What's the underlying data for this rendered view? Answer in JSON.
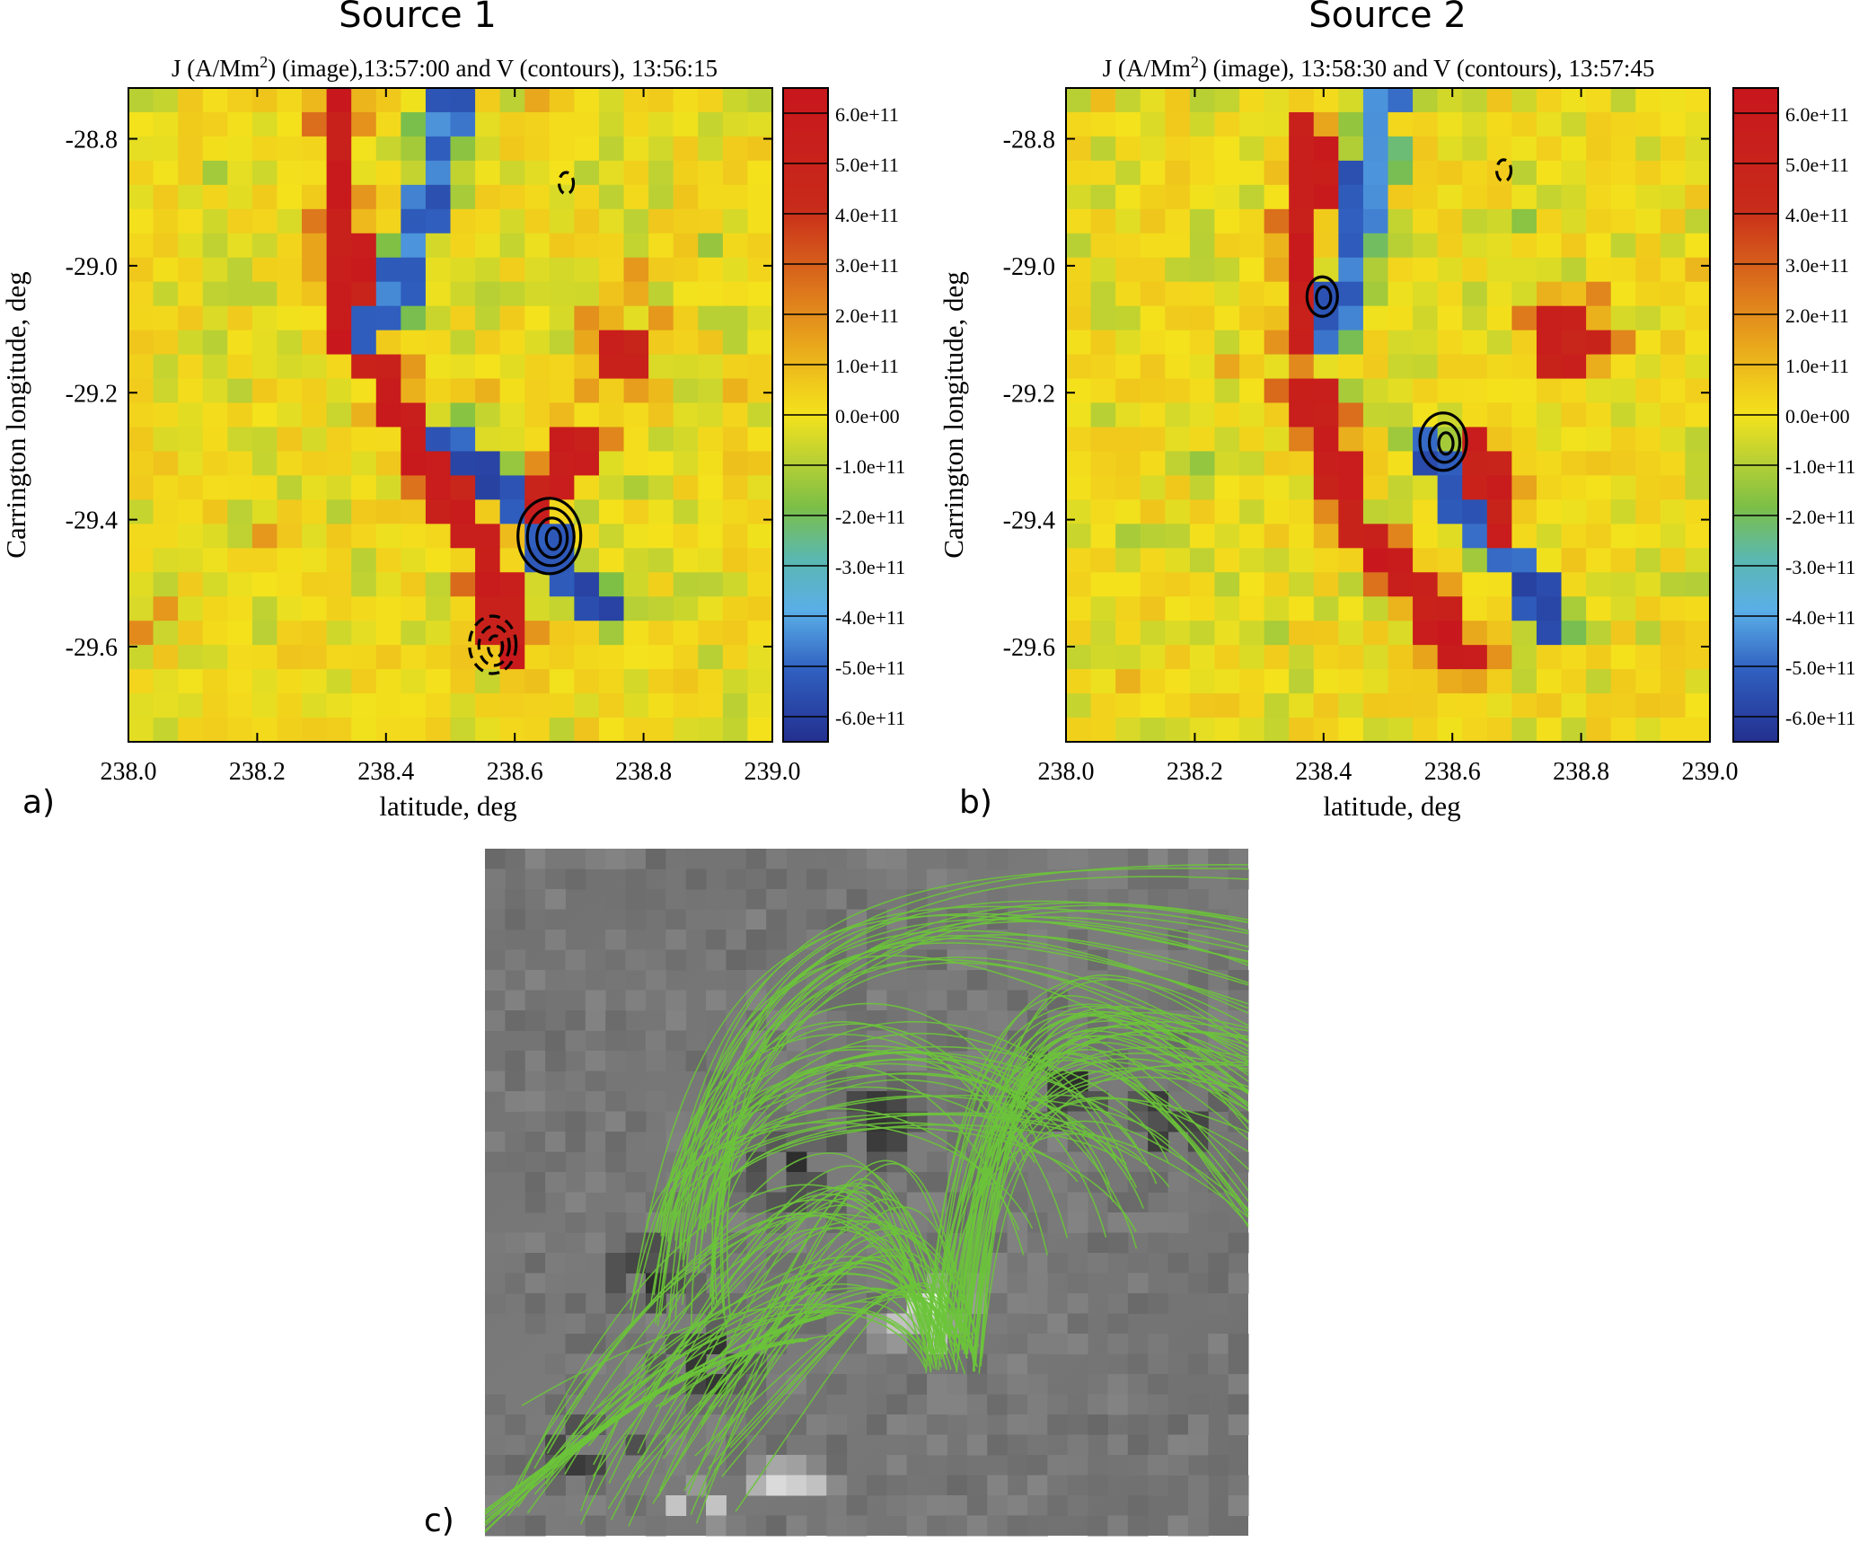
{
  "figure": {
    "panels": [
      {
        "id": "a",
        "letter": "a)",
        "source_title": "Source 1",
        "plot_title_prefix": "J (A/Mm",
        "plot_title_sup": "2",
        "plot_title_suffix": ") (image),13:57:00 and V (contours), 13:56:15",
        "xlabel": "latitude, deg",
        "ylabel": "Carrington longitude, deg",
        "xticks": [
          "238.0",
          "238.2",
          "238.4",
          "238.6",
          "238.8",
          "239.0"
        ],
        "yticks": [
          "-28.8",
          "-29.0",
          "-29.2",
          "-29.4",
          "-29.6"
        ]
      },
      {
        "id": "b",
        "letter": "b)",
        "source_title": "Source 2",
        "plot_title_prefix": "J (A/Mm",
        "plot_title_sup": "2",
        "plot_title_suffix": ") (image), 13:58:30 and V (contours), 13:57:45",
        "xlabel": "latitude, deg",
        "ylabel": "Carrington longitude, deg",
        "xticks": [
          "238.0",
          "238.2",
          "238.4",
          "238.6",
          "238.8",
          "239.0"
        ],
        "yticks": [
          "-28.8",
          "-29.0",
          "-29.2",
          "-29.4",
          "-29.6"
        ]
      }
    ],
    "colorbar_ticks": [
      "6.0e+11",
      "5.0e+11",
      "4.0e+11",
      "3.0e+11",
      "2.0e+11",
      "1.0e+11",
      "0.0e+00",
      "-1.0e+11",
      "-2.0e+11",
      "-3.0e+11",
      "-4.0e+11",
      "-5.0e+11",
      "-6.0e+11"
    ],
    "panel_c_letter": "c)",
    "colors": {
      "field_line": "#6cc43a",
      "positive_strong": "#c8161d",
      "zero": "#f4e21c",
      "negative_strong": "#232f8f"
    }
  },
  "chart_data": [
    {
      "type": "heatmap",
      "title": "J (A/Mm2) (image),13:57:00 and V (contours), 13:56:15",
      "xlabel": "latitude, deg",
      "ylabel": "Carrington longitude, deg",
      "xlim": [
        238.0,
        239.0
      ],
      "ylim": [
        -29.75,
        -28.72
      ],
      "color_range": [
        -650000000000.0,
        650000000000.0
      ],
      "features": [
        {
          "kind": "positive_strip",
          "points": [
            [
              238.33,
              -28.75
            ],
            [
              238.34,
              -29.1
            ]
          ],
          "value": 550000000000.0
        },
        {
          "kind": "negative_strip",
          "points": [
            [
              238.5,
              -28.72
            ],
            [
              238.48,
              -28.85
            ],
            [
              238.42,
              -29.05
            ],
            [
              238.38,
              -29.1
            ]
          ],
          "value": -450000000000.0
        },
        {
          "kind": "positive_strip",
          "points": [
            [
              238.38,
              -29.15
            ],
            [
              238.46,
              -29.3
            ],
            [
              238.55,
              -29.45
            ],
            [
              238.6,
              -29.62
            ]
          ],
          "value": 550000000000.0
        },
        {
          "kind": "negative_strip",
          "points": [
            [
              238.5,
              -29.28
            ],
            [
              238.62,
              -29.4
            ],
            [
              238.74,
              -29.55
            ]
          ],
          "value": -500000000000.0
        },
        {
          "kind": "positive_strip",
          "points": [
            [
              238.7,
              -29.28
            ],
            [
              238.64,
              -29.36
            ]
          ],
          "value": 500000000000.0
        },
        {
          "kind": "positive_blob",
          "points": [
            [
              238.77,
              -29.13
            ]
          ],
          "value": 500000000000.0
        }
      ],
      "contours": [
        {
          "style": "solid",
          "center": [
            238.66,
            -29.43
          ],
          "levels": 4
        },
        {
          "style": "dashed",
          "center": [
            238.57,
            -29.6
          ],
          "levels": 3
        },
        {
          "style": "dashed",
          "center": [
            238.68,
            -28.87
          ],
          "levels": 1
        }
      ]
    },
    {
      "type": "heatmap",
      "title": "J (A/Mm2) (image), 13:58:30 and V (contours), 13:57:45",
      "xlabel": "latitude, deg",
      "ylabel": "Carrington longitude, deg",
      "xlim": [
        238.0,
        239.0
      ],
      "ylim": [
        -29.75,
        -28.72
      ],
      "color_range": [
        -650000000000.0,
        650000000000.0
      ],
      "features": [
        {
          "kind": "positive_strip",
          "points": [
            [
              238.38,
              -28.8
            ],
            [
              238.36,
              -29.1
            ]
          ],
          "value": 550000000000.0
        },
        {
          "kind": "negative_strip",
          "points": [
            [
              238.5,
              -28.72
            ],
            [
              238.46,
              -28.9
            ],
            [
              238.42,
              -29.1
            ]
          ],
          "value": -450000000000.0
        },
        {
          "kind": "positive_strip",
          "points": [
            [
              238.38,
              -29.2
            ],
            [
              238.44,
              -29.4
            ],
            [
              238.54,
              -29.5
            ],
            [
              238.62,
              -29.62
            ]
          ],
          "value": 550000000000.0
        },
        {
          "kind": "negative_strip",
          "points": [
            [
              238.56,
              -29.28
            ],
            [
              238.64,
              -29.4
            ],
            [
              238.76,
              -29.56
            ]
          ],
          "value": -500000000000.0
        },
        {
          "kind": "positive_strip",
          "points": [
            [
              238.64,
              -29.28
            ],
            [
              238.68,
              -29.4
            ]
          ],
          "value": 500000000000.0
        },
        {
          "kind": "positive_blob",
          "points": [
            [
              238.78,
              -29.12
            ]
          ],
          "value": 500000000000.0
        }
      ],
      "contours": [
        {
          "style": "solid",
          "center": [
            238.59,
            -29.28
          ],
          "levels": 3
        },
        {
          "style": "solid",
          "center": [
            238.4,
            -29.05
          ],
          "levels": 2
        },
        {
          "style": "dashed",
          "center": [
            238.68,
            -28.85
          ],
          "levels": 1
        }
      ]
    }
  ]
}
